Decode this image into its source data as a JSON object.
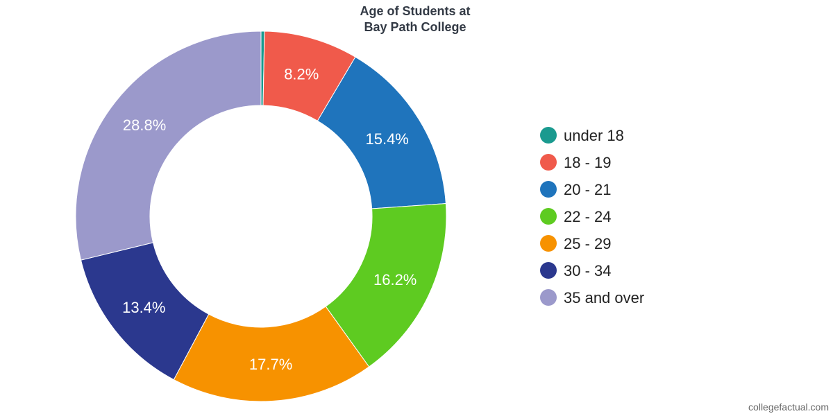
{
  "chart_data": {
    "type": "pie",
    "title": [
      "Age of Students at",
      "Bay Path College"
    ],
    "slices": [
      {
        "name": "under 18",
        "value": 0.3,
        "label": "",
        "color": "#1a9a8f"
      },
      {
        "name": "18 - 19",
        "value": 8.2,
        "label": "8.2%",
        "color": "#f05a4b"
      },
      {
        "name": "20 - 21",
        "value": 15.4,
        "label": "15.4%",
        "color": "#1f74bc"
      },
      {
        "name": "22 - 24",
        "value": 16.2,
        "label": "16.2%",
        "color": "#5ecb21"
      },
      {
        "name": "25 - 29",
        "value": 17.7,
        "label": "17.7%",
        "color": "#f79200"
      },
      {
        "name": "30 - 34",
        "value": 13.4,
        "label": "13.4%",
        "color": "#2b388e"
      },
      {
        "name": "35 and over",
        "value": 28.8,
        "label": "28.8%",
        "color": "#9b99cb"
      }
    ],
    "legend_position": "right"
  },
  "credit": "collegefactual.com"
}
